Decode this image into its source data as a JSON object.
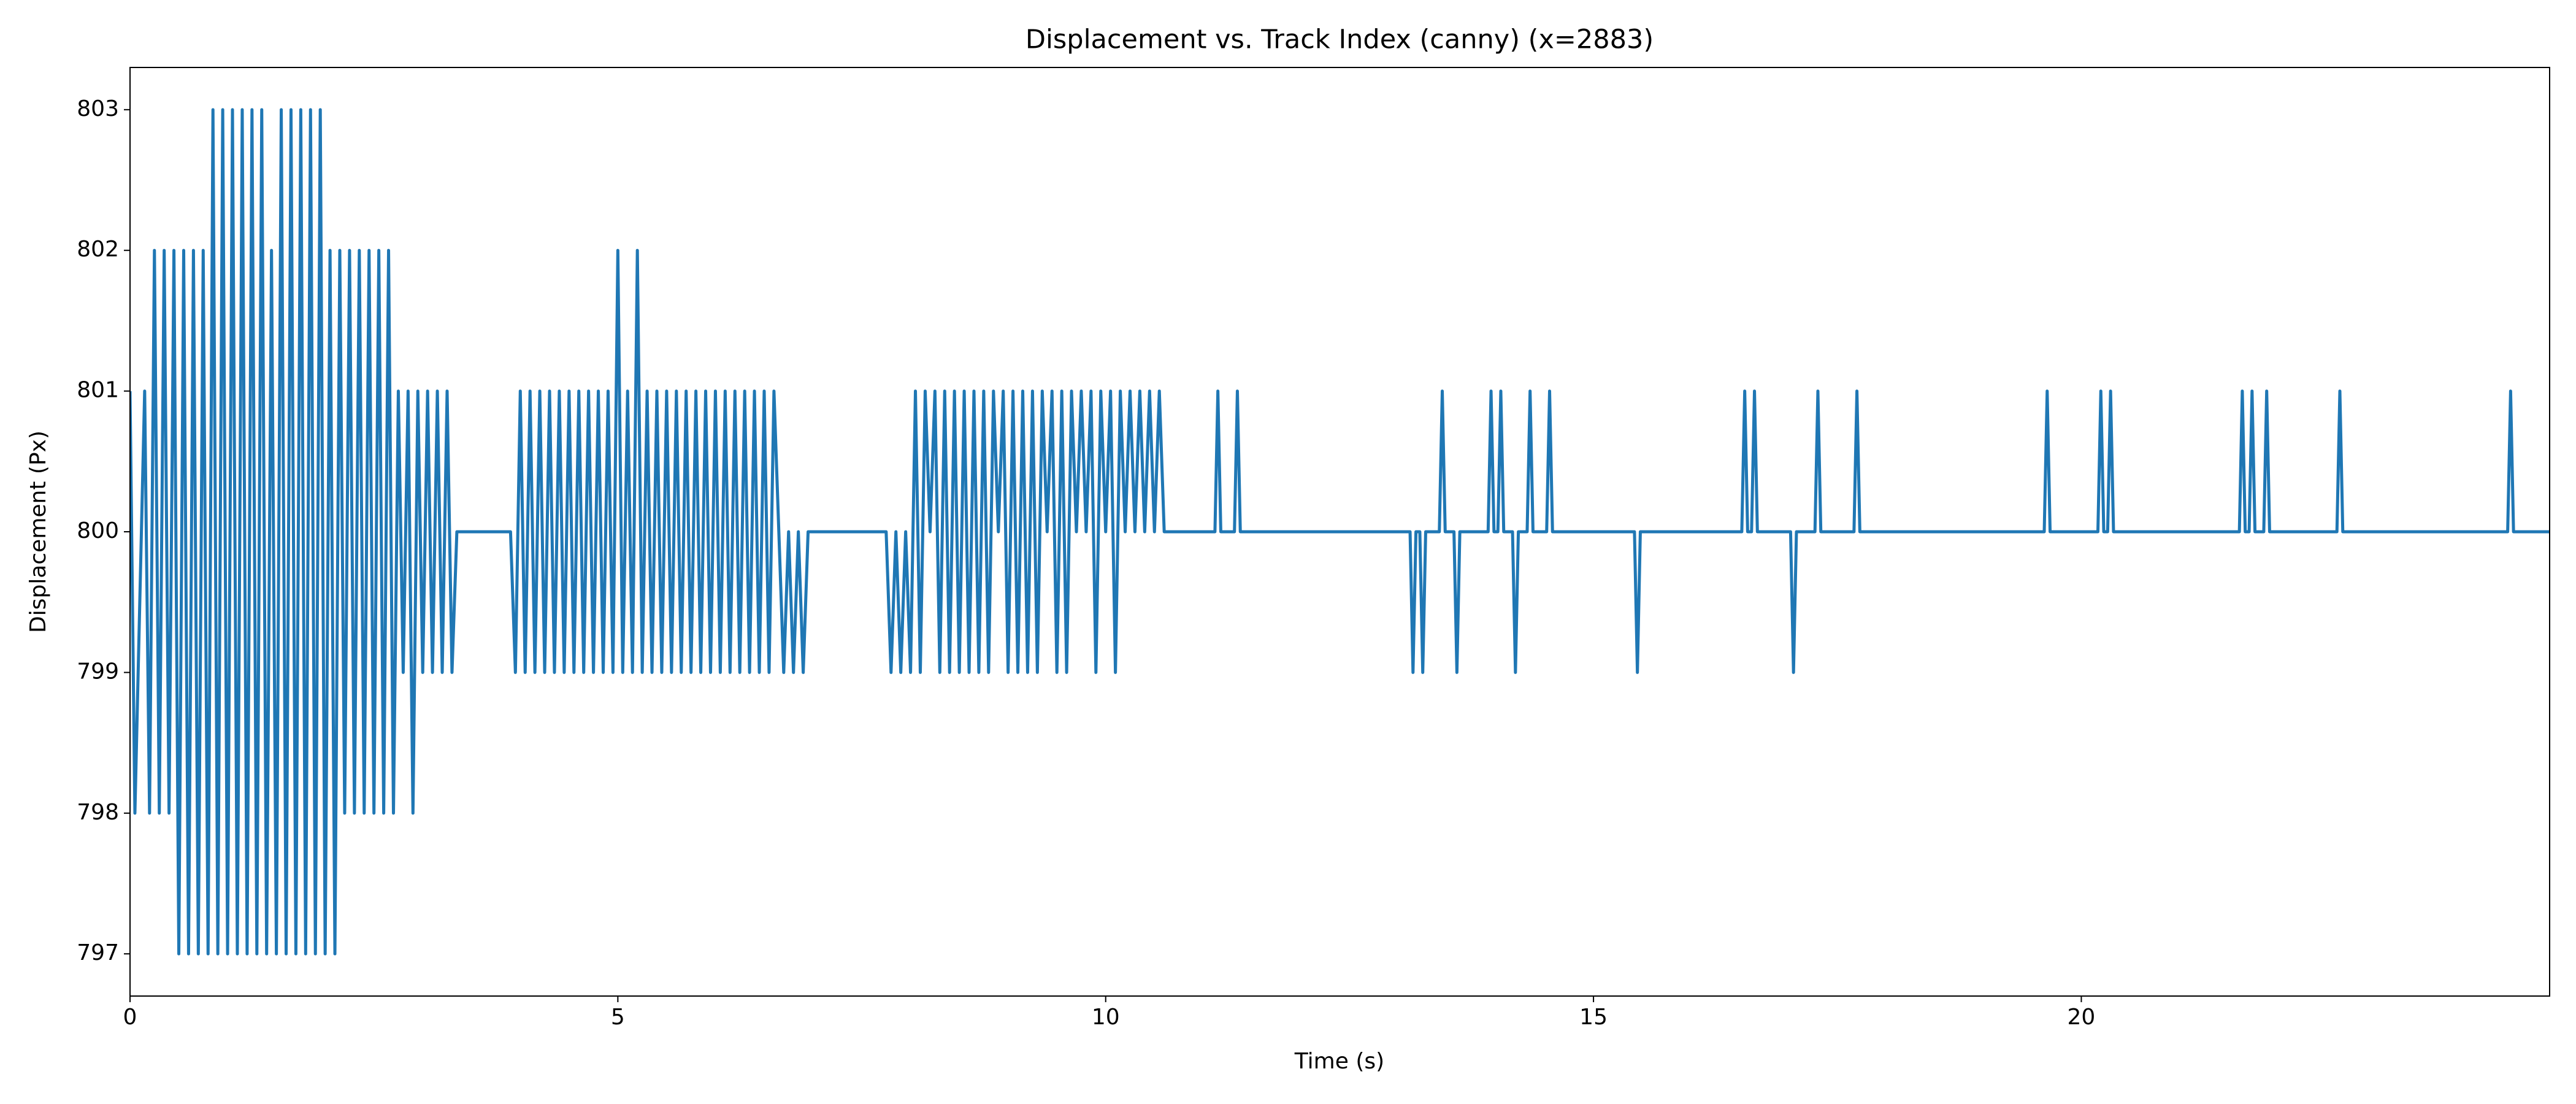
{
  "chart_data": {
    "type": "line",
    "title": "Displacement vs. Track Index (canny) (x=2883)",
    "x_label": "Time (s)",
    "y_label": "Displacement (Px)",
    "color": "#1f77b4",
    "xlim": [
      0,
      24.8
    ],
    "ylim": [
      796.7,
      803.3
    ],
    "xticks": [
      0,
      5,
      10,
      15,
      20
    ],
    "yticks": [
      797,
      798,
      799,
      800,
      801,
      802,
      803
    ],
    "x": [
      0,
      0.05,
      0.15,
      0.2,
      0.25,
      0.3,
      0.35,
      0.4,
      0.45,
      0.5,
      0.55,
      0.6,
      0.65,
      0.7,
      0.75,
      0.8,
      0.85,
      0.9,
      0.95,
      1.0,
      1.05,
      1.1,
      1.15,
      1.2,
      1.25,
      1.3,
      1.35,
      1.4,
      1.45,
      1.5,
      1.55,
      1.6,
      1.65,
      1.7,
      1.75,
      1.8,
      1.85,
      1.9,
      1.95,
      2.0,
      2.05,
      2.1,
      2.15,
      2.2,
      2.25,
      2.3,
      2.35,
      2.4,
      2.45,
      2.5,
      2.55,
      2.6,
      2.65,
      2.7,
      2.75,
      2.8,
      2.85,
      2.9,
      2.95,
      3.0,
      3.05,
      3.1,
      3.15,
      3.2,
      3.25,
      3.3,
      3.35,
      3.9,
      3.95,
      4.0,
      4.05,
      4.1,
      4.15,
      4.2,
      4.25,
      4.3,
      4.35,
      4.4,
      4.45,
      4.5,
      4.55,
      4.6,
      4.65,
      4.7,
      4.75,
      4.8,
      4.85,
      4.9,
      4.95,
      5.0,
      5.05,
      5.1,
      5.15,
      5.2,
      5.25,
      5.3,
      5.35,
      5.4,
      5.45,
      5.5,
      5.55,
      5.6,
      5.65,
      5.7,
      5.75,
      5.8,
      5.85,
      5.9,
      5.95,
      6.0,
      6.05,
      6.1,
      6.15,
      6.2,
      6.25,
      6.3,
      6.35,
      6.4,
      6.45,
      6.5,
      6.55,
      6.6,
      6.65,
      6.7,
      6.75,
      6.8,
      6.85,
      6.9,
      6.95,
      7.75,
      7.8,
      7.85,
      7.9,
      7.95,
      8.0,
      8.05,
      8.1,
      8.15,
      8.2,
      8.25,
      8.3,
      8.35,
      8.4,
      8.45,
      8.5,
      8.55,
      8.6,
      8.65,
      8.7,
      8.75,
      8.8,
      8.85,
      8.9,
      8.95,
      9.0,
      9.05,
      9.1,
      9.15,
      9.2,
      9.25,
      9.3,
      9.35,
      9.4,
      9.45,
      9.5,
      9.55,
      9.6,
      9.65,
      9.7,
      9.75,
      9.8,
      9.85,
      9.9,
      9.95,
      10.0,
      10.05,
      10.1,
      10.15,
      10.2,
      10.25,
      10.3,
      10.35,
      10.4,
      10.45,
      10.5,
      10.55,
      10.6,
      11.12,
      11.15,
      11.18,
      11.32,
      11.35,
      11.38,
      13.12,
      13.15,
      13.18,
      13.22,
      13.25,
      13.28,
      13.42,
      13.45,
      13.48,
      13.57,
      13.6,
      13.63,
      13.92,
      13.95,
      13.98,
      14.02,
      14.05,
      14.08,
      14.17,
      14.2,
      14.23,
      14.32,
      14.35,
      14.38,
      14.52,
      14.55,
      14.58,
      15.42,
      15.45,
      15.48,
      16.52,
      16.55,
      16.58,
      16.62,
      16.65,
      16.68,
      17.02,
      17.05,
      17.08,
      17.27,
      17.3,
      17.33,
      17.67,
      17.7,
      17.73,
      19.62,
      19.65,
      19.68,
      20.17,
      20.2,
      20.23,
      20.27,
      20.3,
      20.33,
      21.62,
      21.65,
      21.68,
      21.72,
      21.75,
      21.78,
      21.87,
      21.9,
      21.93,
      22.62,
      22.65,
      22.68,
      24.37,
      24.4,
      24.43,
      24.8
    ],
    "values": [
      801,
      798,
      801,
      798,
      802,
      798,
      802,
      798,
      802,
      797,
      802,
      797,
      802,
      797,
      802,
      797,
      803,
      797,
      803,
      797,
      803,
      797,
      803,
      797,
      803,
      797,
      803,
      797,
      802,
      797,
      803,
      797,
      803,
      797,
      803,
      797,
      803,
      797,
      803,
      797,
      802,
      797,
      802,
      798,
      802,
      798,
      802,
      798,
      802,
      798,
      802,
      798,
      802,
      798,
      801,
      799,
      801,
      798,
      801,
      799,
      801,
      799,
      801,
      799,
      801,
      799,
      800,
      800,
      799,
      801,
      799,
      801,
      799,
      801,
      799,
      801,
      799,
      801,
      799,
      801,
      799,
      801,
      799,
      801,
      799,
      801,
      799,
      801,
      799,
      802,
      799,
      801,
      799,
      802,
      799,
      801,
      799,
      801,
      799,
      801,
      799,
      801,
      799,
      801,
      799,
      801,
      799,
      801,
      799,
      801,
      799,
      801,
      799,
      801,
      799,
      801,
      799,
      801,
      799,
      801,
      799,
      801,
      800,
      799,
      800,
      799,
      800,
      799,
      800,
      800,
      799,
      800,
      799,
      800,
      799,
      801,
      799,
      801,
      800,
      801,
      799,
      801,
      799,
      801,
      799,
      801,
      799,
      801,
      799,
      801,
      799,
      801,
      800,
      801,
      799,
      801,
      799,
      801,
      799,
      801,
      799,
      801,
      800,
      801,
      799,
      801,
      799,
      801,
      800,
      801,
      800,
      801,
      799,
      801,
      800,
      801,
      799,
      801,
      800,
      801,
      800,
      801,
      800,
      801,
      800,
      801,
      800,
      800,
      801,
      800,
      800,
      801,
      800,
      800,
      799,
      800,
      800,
      799,
      800,
      800,
      801,
      800,
      800,
      799,
      800,
      800,
      801,
      800,
      800,
      801,
      800,
      800,
      799,
      800,
      800,
      801,
      800,
      800,
      801,
      800,
      800,
      799,
      800,
      800,
      801,
      800,
      800,
      801,
      800,
      800,
      799,
      800,
      800,
      801,
      800,
      800,
      801,
      800,
      800,
      801,
      800,
      800,
      801,
      800,
      800,
      801,
      800,
      800,
      801,
      800,
      800,
      801,
      800,
      800,
      801,
      800,
      800,
      801,
      800,
      800,
      801,
      800,
      800
    ]
  }
}
